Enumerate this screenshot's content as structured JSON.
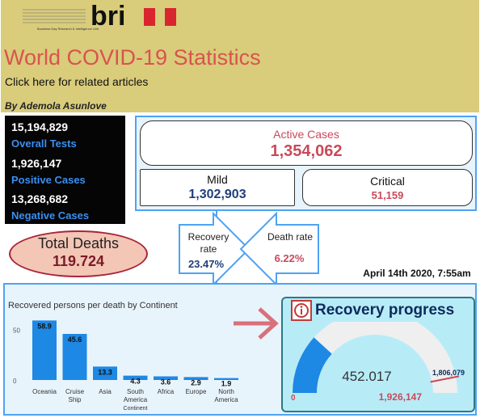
{
  "header": {
    "logo_text": "bri",
    "logo_tagline": "Business Day Research & Intelligence Unit",
    "title": "World COVID-19 Statistics",
    "subtitle": "Click here for related articles",
    "byline": "By Ademola Asunlove"
  },
  "tests": {
    "overall_value": "15,194,829",
    "overall_label": "Overall Tests",
    "positive_value": "1,926,147",
    "positive_label": "Positive Cases",
    "negative_value": "13,268,682",
    "negative_label": "Negative Cases"
  },
  "cases": {
    "active_label": "Active Cases",
    "active_value": "1,354,062",
    "mild_label": "Mild",
    "mild_value": "1,302,903",
    "critical_label": "Critical",
    "critical_value": "51,159"
  },
  "deaths": {
    "label": "Total Deaths",
    "value": "119.724"
  },
  "rates": {
    "recovery_label_1": "Recovery",
    "recovery_label_2": "rate",
    "recovery_value": "23.47%",
    "death_label": "Death rate",
    "death_value": "6.22%"
  },
  "timestamp": "April 14th 2020, 7:55am",
  "colors": {
    "accent_blue": "#1e88e5",
    "red": "#c94a5a",
    "header_bg": "#d9cc7b"
  },
  "chart_data": {
    "type": "bar",
    "title": "Recovered persons per death by Continent",
    "categories": [
      {
        "lines": [
          "Oceania"
        ]
      },
      {
        "lines": [
          "Cruise",
          "Ship"
        ]
      },
      {
        "lines": [
          "Asia"
        ]
      },
      {
        "lines": [
          "South",
          "America",
          "Continent"
        ]
      },
      {
        "lines": [
          "Africa"
        ]
      },
      {
        "lines": [
          "Europe"
        ]
      },
      {
        "lines": [
          "North",
          "America"
        ]
      }
    ],
    "values": [
      58.9,
      45.6,
      13.3,
      4.3,
      3.6,
      2.9,
      1.9
    ],
    "value_labels": [
      "58.9",
      "45.6",
      "13.3",
      "4.3",
      "3.6",
      "2.9",
      "1.9"
    ],
    "y_ticks": [
      {
        "value": 50,
        "label": "50"
      },
      {
        "value": 0,
        "label": "0"
      }
    ],
    "ylim": [
      0,
      64
    ],
    "bar_color": "#1e88e5"
  },
  "progress": {
    "title": "Recovery progress",
    "info_icon": "info-icon",
    "gauge": {
      "value": 452017,
      "value_label": "452.017",
      "min": 0,
      "min_label": "0",
      "max": 1926147,
      "max_label": "1,926,147",
      "target": 1806079,
      "target_label": "1,806,079",
      "fill_color": "#1e88e5",
      "track_color": "#efefef",
      "target_color": "#c94a5a"
    }
  }
}
